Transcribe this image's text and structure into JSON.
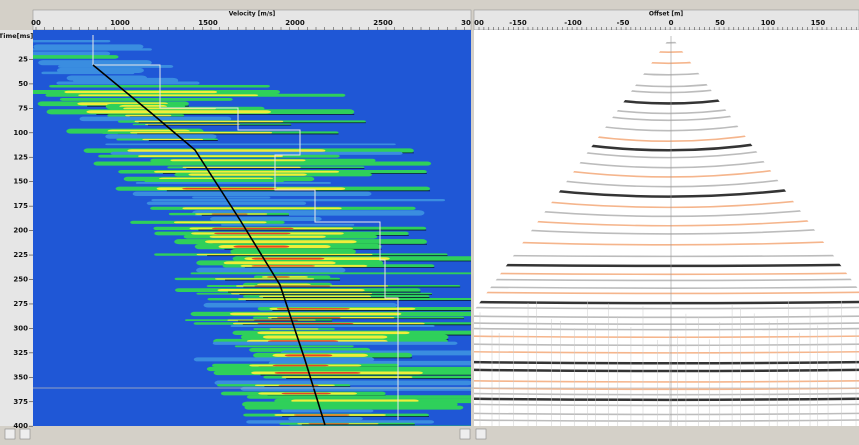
{
  "velocity_panel": {
    "axis_title": "Velocity [m/s]",
    "x_ticks": [
      "00",
      "1000",
      "1500",
      "2000",
      "2500",
      "30"
    ],
    "time_axis_title": "Time[ms]",
    "time_ticks": [
      "25",
      "50",
      "75",
      "100",
      "125",
      "150",
      "175",
      "200",
      "225",
      "250",
      "275",
      "300",
      "325",
      "350",
      "375",
      "400"
    ]
  },
  "offset_panel": {
    "axis_title": "Offset [m]",
    "x_ticks": [
      "00",
      "-150",
      "-100",
      "-50",
      "0",
      "50",
      "100",
      "150"
    ]
  }
}
